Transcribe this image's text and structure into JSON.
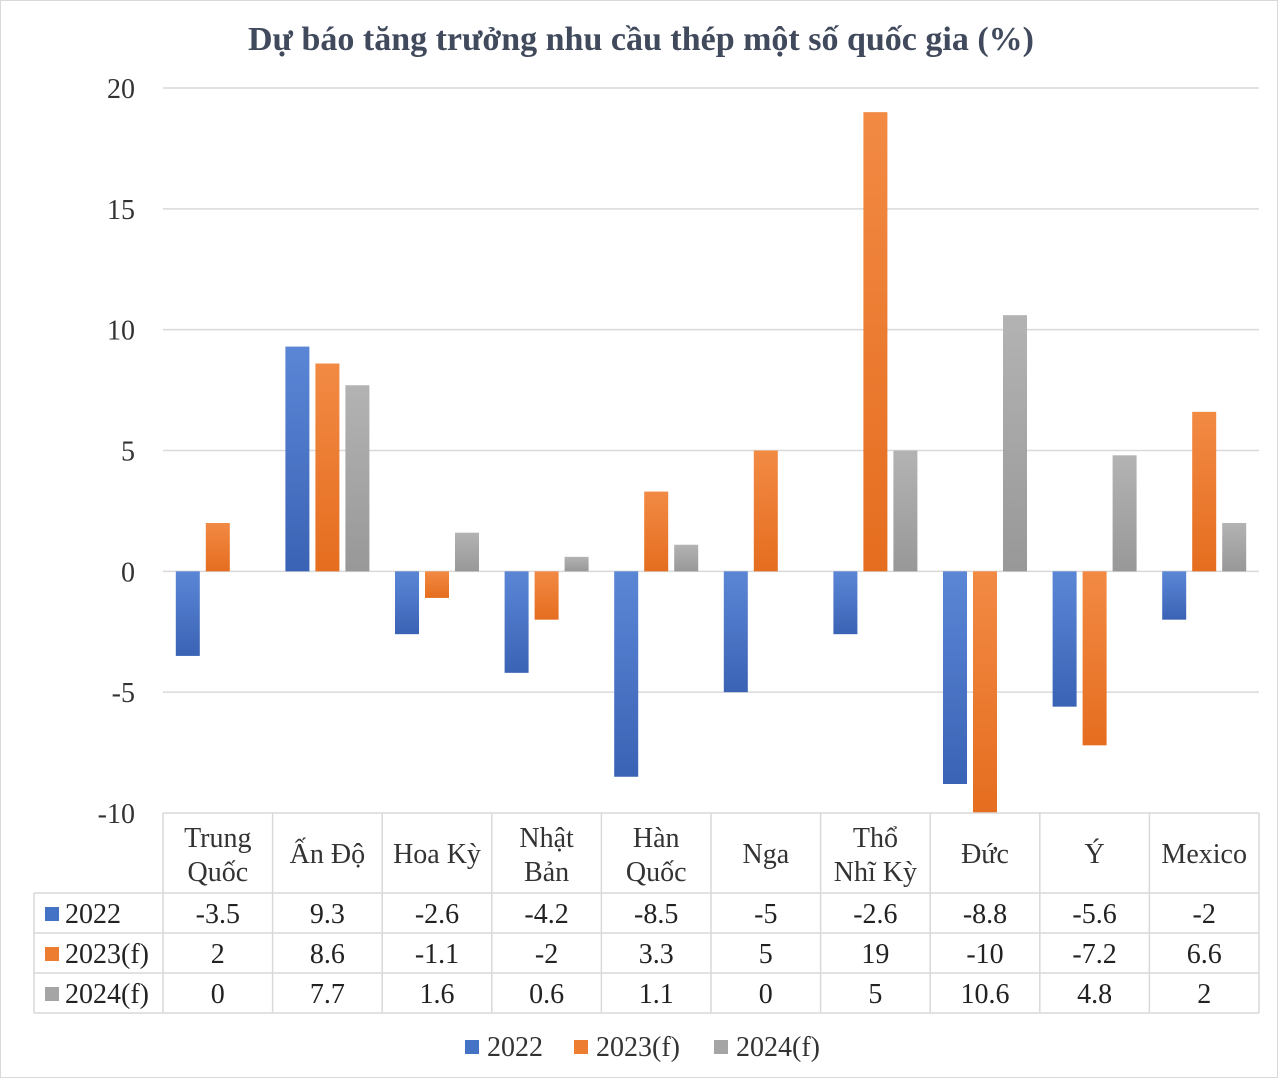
{
  "chart_data": {
    "type": "bar",
    "title": "Dự báo tăng trưởng nhu cầu thép một số quốc gia (%)",
    "xlabel": "",
    "ylabel": "",
    "ylim": [
      -10,
      20
    ],
    "yticks": [
      20,
      15,
      10,
      5,
      0,
      -5,
      -10
    ],
    "grid": true,
    "legend_position": "bottom",
    "data_table": true,
    "categories": [
      [
        "Trung",
        "Quốc"
      ],
      [
        "Ấn Độ"
      ],
      [
        "Hoa Kỳ"
      ],
      [
        "Nhật",
        "Bản"
      ],
      [
        "Hàn",
        "Quốc"
      ],
      [
        "Nga"
      ],
      [
        "Thổ",
        "Nhĩ Kỳ"
      ],
      [
        "Đức"
      ],
      [
        "Ý"
      ],
      [
        "Mexico"
      ]
    ],
    "series": [
      {
        "name": "2022",
        "color": "#4472c4",
        "values": [
          -3.5,
          9.3,
          -2.6,
          -4.2,
          -8.5,
          -5,
          -2.6,
          -8.8,
          -5.6,
          -2
        ]
      },
      {
        "name": "2023(f)",
        "color": "#ed7d31",
        "values": [
          2,
          8.6,
          -1.1,
          -2,
          3.3,
          5,
          19,
          -10,
          -7.2,
          6.6
        ]
      },
      {
        "name": "2024(f)",
        "color": "#a5a5a5",
        "values": [
          0,
          7.7,
          1.6,
          0.6,
          1.1,
          0,
          5,
          10.6,
          4.8,
          2
        ]
      }
    ]
  }
}
